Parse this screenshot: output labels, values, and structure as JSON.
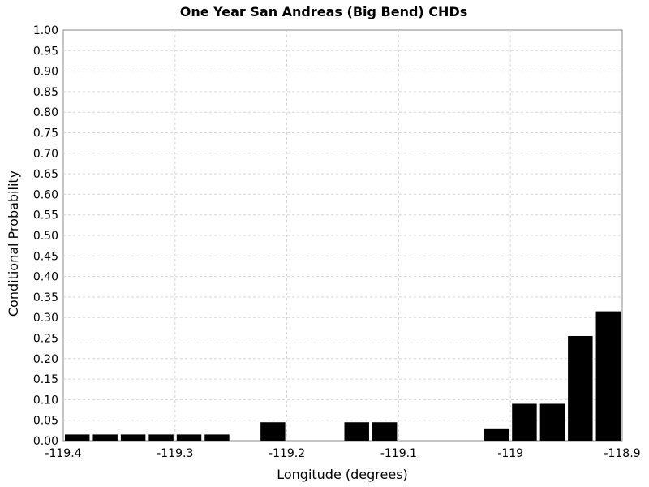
{
  "chart_data": {
    "type": "bar",
    "title": "One Year San Andreas (Big Bend) CHDs",
    "xlabel": "Longitude (degrees)",
    "ylabel": "Conditional Probability",
    "xlim": [
      -119.4,
      -118.9
    ],
    "ylim": [
      0,
      1
    ],
    "x_ticks": [
      "-119.4",
      "-119.3",
      "-119.2",
      "-119.1",
      "-119",
      "-118.9"
    ],
    "x_tick_values": [
      -119.4,
      -119.3,
      -119.2,
      -119.1,
      -119.0,
      -118.9
    ],
    "y_ticks": [
      "0.00",
      "0.05",
      "0.10",
      "0.15",
      "0.20",
      "0.25",
      "0.30",
      "0.35",
      "0.40",
      "0.45",
      "0.50",
      "0.55",
      "0.60",
      "0.65",
      "0.70",
      "0.75",
      "0.80",
      "0.85",
      "0.90",
      "0.95",
      "1.00"
    ],
    "grid": true,
    "bar_width": 0.025,
    "series": [
      {
        "color": "#000000",
        "x": [
          -119.3875,
          -119.3625,
          -119.3375,
          -119.3125,
          -119.2875,
          -119.2625,
          -119.2125,
          -119.1375,
          -119.1125,
          -119.0125,
          -118.9875,
          -118.9625,
          -118.9375,
          -118.9125
        ],
        "values": [
          0.015,
          0.015,
          0.015,
          0.015,
          0.015,
          0.015,
          0.045,
          0.045,
          0.045,
          0.03,
          0.09,
          0.09,
          0.255,
          0.315
        ]
      }
    ]
  }
}
